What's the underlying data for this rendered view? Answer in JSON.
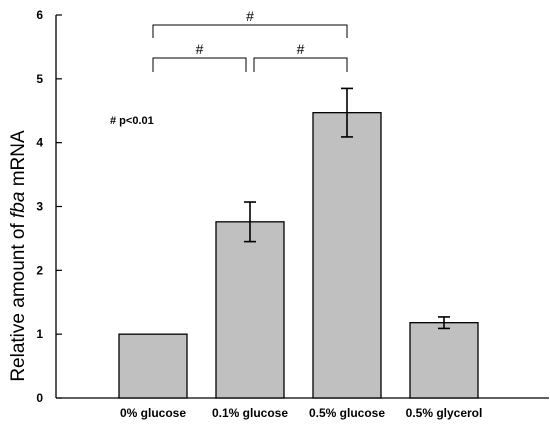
{
  "chart_data": {
    "type": "bar",
    "categories": [
      "0% glucose",
      "0.1% glucose",
      "0.5% glucose",
      "0.5% glycerol"
    ],
    "values": [
      1.0,
      2.76,
      4.47,
      1.18
    ],
    "errors": [
      0.0,
      0.31,
      0.38,
      0.09
    ],
    "ylim": [
      0,
      6
    ],
    "yticks": [
      "0",
      "1",
      "2",
      "3",
      "4",
      "5",
      "6"
    ],
    "ylabel_prefix": "Relative amount of ",
    "ylabel_gene": "fba",
    "ylabel_suffix": " mRNA",
    "bar_color": "#c0c0c0",
    "annotation": "# p<0.01",
    "significance": [
      {
        "from": 0,
        "to": 2,
        "label": "#"
      },
      {
        "from": 0,
        "to": 1,
        "label": "#"
      },
      {
        "from": 1,
        "to": 2,
        "label": "#"
      }
    ]
  }
}
